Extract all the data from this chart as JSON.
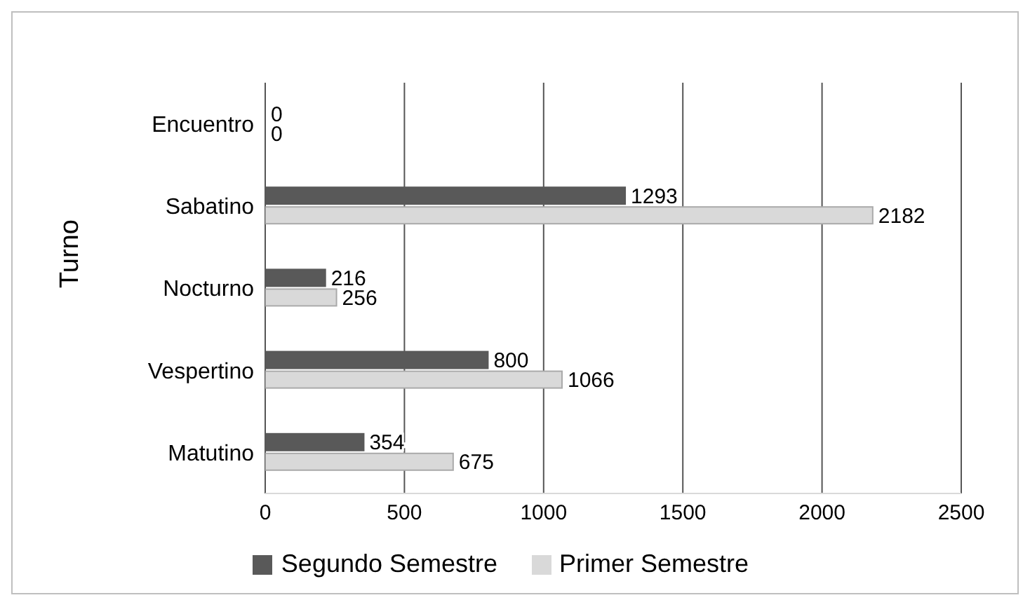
{
  "chart_data": {
    "type": "bar",
    "orientation": "horizontal",
    "ylabel": "Turno",
    "categories": [
      "Encuentro",
      "Sabatino",
      "Nocturno",
      "Vespertino",
      "Matutino"
    ],
    "series": [
      {
        "name": "Segundo Semestre",
        "color": "#595959",
        "values": [
          0,
          1293,
          216,
          800,
          354
        ]
      },
      {
        "name": "Primer Semestre",
        "color": "#d9d9d9",
        "values": [
          0,
          2182,
          256,
          1066,
          675
        ]
      }
    ],
    "xlim": [
      0,
      2500
    ],
    "xticks": [
      0,
      500,
      1000,
      1500,
      2000,
      2500
    ],
    "grid": "x",
    "legend": "bottom",
    "data_labels": true
  }
}
